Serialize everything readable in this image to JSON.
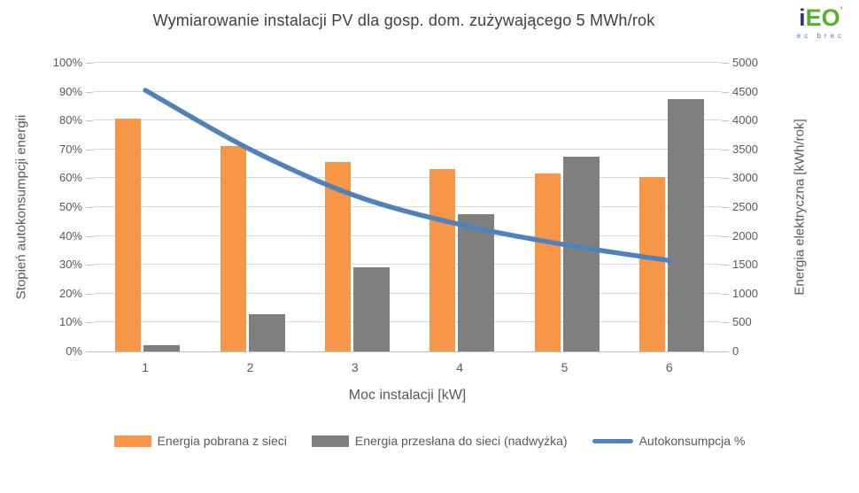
{
  "title": "Wymiarowanie instalacji PV dla gosp. dom. zużywającego 5 MWh/rok",
  "logo": {
    "text_i": "i",
    "text_eo": "EO",
    "mark": "’",
    "subtitle": "ec brec"
  },
  "chart_data": {
    "type": "bar",
    "combo": "clustered-bars-plus-smoothed-line",
    "categories": [
      "1",
      "2",
      "3",
      "4",
      "5",
      "6"
    ],
    "xlabel": "Moc instalacji [kW]",
    "ylabel_left": "Stopień autokonsumpcji energii",
    "ylabel_right": "Energia elektryczna [kWh/rok]",
    "ylim_left": [
      0,
      100
    ],
    "ylim_right": [
      0,
      5000
    ],
    "left_ticks": [
      "0%",
      "10%",
      "20%",
      "30%",
      "40%",
      "50%",
      "60%",
      "70%",
      "80%",
      "90%",
      "100%"
    ],
    "right_ticks": [
      "0",
      "500",
      "1000",
      "1500",
      "2000",
      "2500",
      "3000",
      "3500",
      "4000",
      "4500",
      "5000"
    ],
    "grid": true,
    "legend_position": "bottom",
    "series": [
      {
        "name": "Energia pobrana z sieci",
        "type": "bar",
        "axis": "right",
        "unit": "kWh/rok",
        "color": "#F79646",
        "values": [
          4030,
          3560,
          3290,
          3160,
          3080,
          3020
        ]
      },
      {
        "name": "Energia przesłana do sieci (nadwyżka)",
        "type": "bar",
        "axis": "right",
        "unit": "kWh/rok",
        "color": "#7F7F7F",
        "values": [
          110,
          650,
          1460,
          2380,
          3370,
          4370
        ]
      },
      {
        "name": "Autokonsumpcja %",
        "type": "line",
        "axis": "left",
        "unit": "%",
        "color": "#4F81BD",
        "values": [
          90.5,
          70,
          54,
          44,
          37,
          31.5
        ]
      }
    ]
  },
  "colors": {
    "grid": "#D9D9D9",
    "axis_line": "#BFBFBF",
    "tick_text": "#595959",
    "title_text": "#404040"
  }
}
